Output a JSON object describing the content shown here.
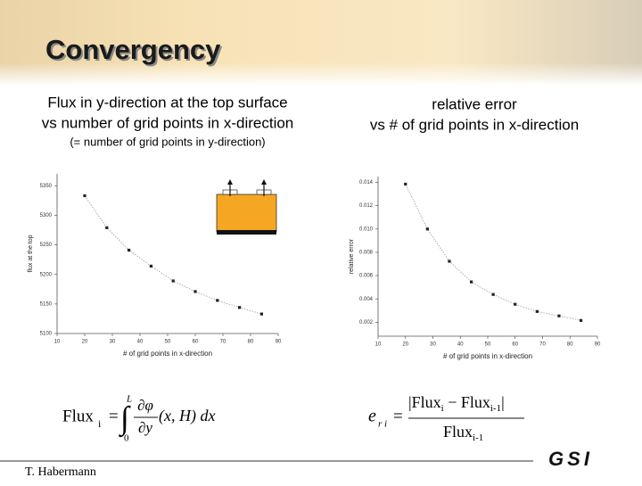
{
  "title": "Convergency",
  "author": "T. Habermann",
  "logo": "GSI",
  "charts_header": [
    {
      "line1": "Flux in y-direction at the top surface",
      "line2": "vs number of grid points in x-direction",
      "line3": "(= number of grid points in y-direction)"
    },
    {
      "line1": "relative error",
      "line2": "vs # of grid points in x-direction"
    }
  ],
  "formulas": {
    "left": {
      "lhs": "Flux",
      "sub": "i",
      "eq": "=",
      "upper": "L",
      "lower": "0",
      "num": "∂φ",
      "den": "∂y",
      "rest": "(x, H) dx"
    },
    "right": {
      "lhs": "e",
      "sub": "r i",
      "eq": "=",
      "num": "|Flux",
      "num_sub": "i",
      "num_mid": " − Flux",
      "num_sub2": "i-1",
      "num_end": "|",
      "den": "Flux",
      "den_sub": "i-1"
    }
  },
  "chart_data": [
    {
      "type": "line",
      "x_label": "# of grid points in x-direction",
      "y_label": "flux at the top",
      "color": "#222222",
      "x": [
        20,
        28,
        36,
        44,
        52,
        60,
        68,
        76,
        84
      ],
      "values": [
        5333,
        5279,
        5241,
        5214,
        5189,
        5171,
        5156,
        5144,
        5133
      ],
      "xlim": [
        10,
        90
      ],
      "xticks": [
        10,
        20,
        30,
        40,
        50,
        60,
        70,
        80,
        90
      ],
      "ylim": [
        5100,
        5370
      ],
      "yticks": [
        5100,
        5150,
        5200,
        5250,
        5300,
        5350
      ]
    },
    {
      "type": "line",
      "x_label": "# of grid points in x-direction",
      "y_label": "relative error",
      "color": "#222222",
      "x": [
        20,
        28,
        36,
        44,
        52,
        60,
        68,
        76,
        84
      ],
      "values": [
        0.01385,
        0.01,
        0.00723,
        0.00546,
        0.00438,
        0.00354,
        0.00292,
        0.00254,
        0.00215
      ],
      "xlim": [
        10,
        90
      ],
      "xticks": [
        10,
        20,
        30,
        40,
        50,
        60,
        70,
        80,
        90
      ],
      "ylim": [
        0.0008,
        0.0145
      ],
      "yticks": [
        {
          "value": 0.002,
          "label": "0.002"
        },
        {
          "value": 0.004,
          "label": "0.004"
        },
        {
          "value": 0.006,
          "label": "0.006"
        },
        {
          "value": 0.008,
          "label": "0.008"
        },
        {
          "value": 0.01,
          "label": "0.010"
        },
        {
          "value": 0.012,
          "label": "0.012"
        },
        {
          "value": 0.014,
          "label": "0.014"
        }
      ]
    }
  ]
}
